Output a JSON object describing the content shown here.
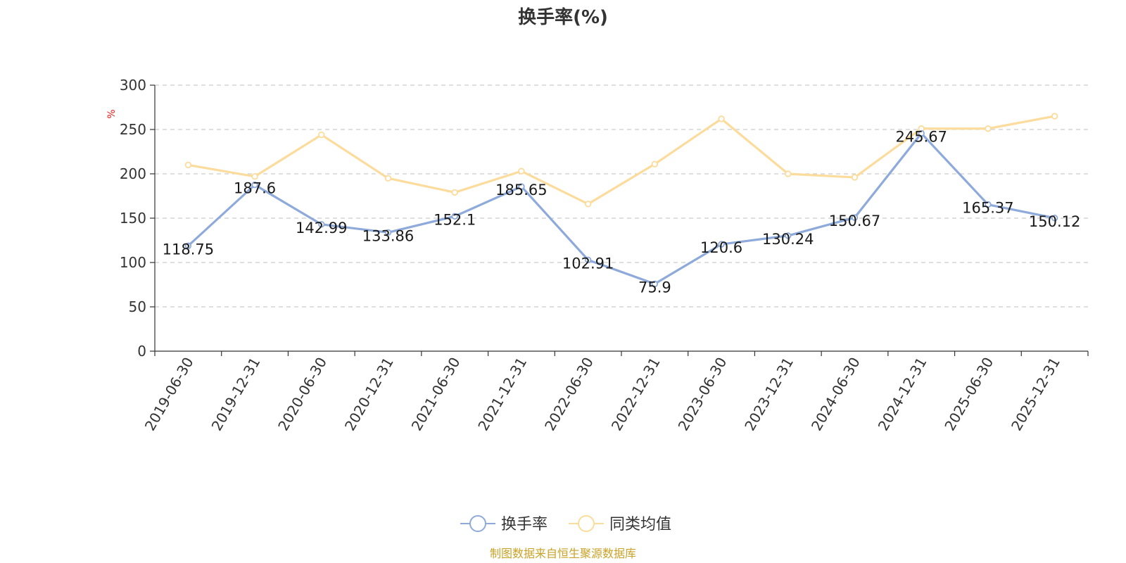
{
  "chart_data": {
    "type": "line",
    "title": "换手率(%)",
    "ylabel": "%",
    "xlabel": "",
    "ylim": [
      0,
      300
    ],
    "yticks": [
      0,
      50,
      100,
      150,
      200,
      250,
      300
    ],
    "grid": true,
    "legend_position": "bottom",
    "categories": [
      "2019-06-30",
      "2019-12-31",
      "2020-06-30",
      "2020-12-31",
      "2021-06-30",
      "2021-12-31",
      "2022-06-30",
      "2022-12-31",
      "2023-06-30",
      "2023-12-31",
      "2024-06-30",
      "2024-12-31",
      "2025-06-30",
      "2025-12-31"
    ],
    "series": [
      {
        "name": "换手率",
        "color": "#8eaadb",
        "values": [
          118.75,
          187.6,
          142.99,
          133.86,
          152.1,
          185.65,
          102.91,
          75.9,
          120.6,
          130.24,
          150.67,
          245.67,
          165.37,
          150.12
        ],
        "data_labels": [
          "118.75",
          "187.6",
          "142.99",
          "133.86",
          "152.1",
          "185.65",
          "102.91",
          "75.9",
          "120.6",
          "130.24",
          "150.67",
          "245.67",
          "165.37",
          "150.12"
        ]
      },
      {
        "name": "同类均值",
        "color": "#fcdc9c",
        "values": [
          210,
          197,
          244,
          195,
          179,
          203,
          166,
          211,
          262,
          200,
          196,
          251,
          251,
          265
        ]
      }
    ],
    "source": "制图数据来自恒生聚源数据库"
  }
}
